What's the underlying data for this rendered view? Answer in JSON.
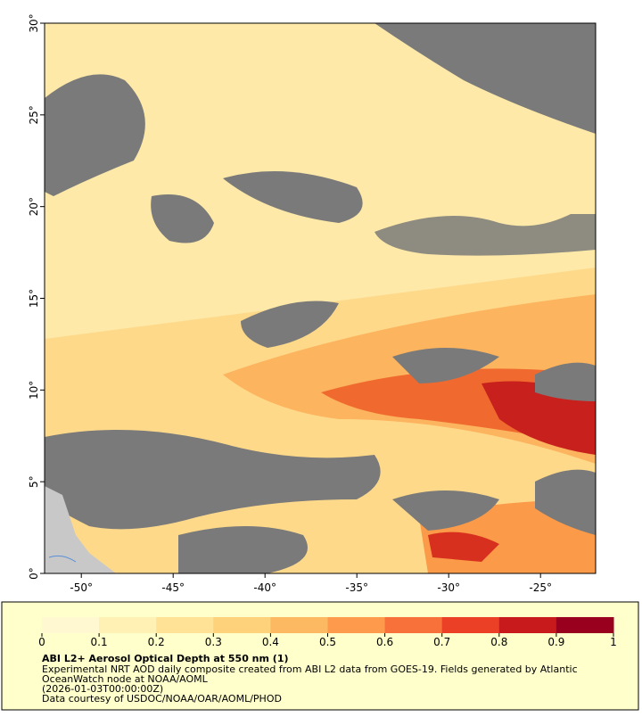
{
  "map": {
    "xlim": [
      -52,
      -22
    ],
    "ylim": [
      0,
      30
    ],
    "xticks": [
      {
        "value": -50,
        "label": "-50°"
      },
      {
        "value": -45,
        "label": "-45°"
      },
      {
        "value": -40,
        "label": "-40°"
      },
      {
        "value": -35,
        "label": "-35°"
      },
      {
        "value": -30,
        "label": "-30°"
      },
      {
        "value": -25,
        "label": "-25°"
      }
    ],
    "yticks": [
      {
        "value": 0,
        "label": "0°"
      },
      {
        "value": 5,
        "label": "5°"
      },
      {
        "value": 10,
        "label": "10°"
      },
      {
        "value": 15,
        "label": "15°"
      },
      {
        "value": 20,
        "label": "20°"
      },
      {
        "value": 25,
        "label": "25°"
      },
      {
        "value": 30,
        "label": "30°"
      }
    ],
    "colorbar": {
      "range": [
        0,
        1
      ],
      "ticks": [
        0,
        0.1,
        0.2,
        0.3,
        0.4,
        0.5,
        0.6,
        0.7,
        0.8,
        0.9,
        1
      ],
      "colors": [
        "#fff8d0",
        "#fff0b4",
        "#ffe296",
        "#fed27a",
        "#fdb862",
        "#fd9a4c",
        "#f8703a",
        "#ec4026",
        "#c81a1c",
        "#98001e"
      ]
    },
    "title": "ABI L2+ Aerosol Optical Depth at 550 nm (1)",
    "caption": [
      "Experimental NRT AOD daily composite created from ABI L2 data from GOES-19. Fields generated by Atlantic",
      "OceanWatch node at NOAA/AOML",
      "(2026-01-03T00:00:00Z)",
      "Data courtesy of USDOC/NOAA/OAR/AOML/PHOD"
    ]
  }
}
